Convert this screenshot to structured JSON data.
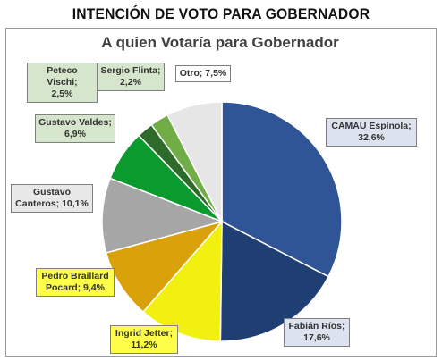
{
  "headline": "INTENCIÓN DE VOTO PARA GOBERNADOR",
  "chart_data": {
    "type": "pie",
    "title": "A quien Votaría para Gobernador",
    "slices": [
      {
        "name": "CAMAU Espínola",
        "value": 32.6,
        "label_line1": "CAMAU Espínola;",
        "label_line2": "32,6%",
        "color": "#2f5597",
        "label_bg": "#dce3ef"
      },
      {
        "name": "Fabián Ríos",
        "value": 17.6,
        "label_line1": "Fabián Ríos;",
        "label_line2": "17,6%",
        "color": "#1f3f73",
        "label_bg": "#dce3ef"
      },
      {
        "name": "Ingrid Jetter",
        "value": 11.2,
        "label_line1": "Ingrid Jetter;",
        "label_line2": "11,2%",
        "color": "#f2f00f",
        "label_bg": "#fefe4a"
      },
      {
        "name": "Pedro Braillard Pocard",
        "value": 9.4,
        "label_line1": "Pedro Braillard",
        "label_line2": "Pocard; 9,4%",
        "color": "#d9a20b",
        "label_bg": "#fefe4a"
      },
      {
        "name": "Gustavo Canteros",
        "value": 10.1,
        "label_line1": "Gustavo",
        "label_line2": "Canteros; 10,1%",
        "color": "#a6a6a6",
        "label_bg": "#e8e8e8"
      },
      {
        "name": "Gustavo Valdes",
        "value": 6.9,
        "label_line1": "Gustavo Valdes;",
        "label_line2": "6,9%",
        "color": "#0a9a2e",
        "label_bg": "#d6e6cc"
      },
      {
        "name": "Sergio Flinta",
        "value": 2.2,
        "label_line1": "Sergio Flinta;",
        "label_line2": "2,2%",
        "color": "#2e6b2a",
        "label_bg": "#d6e6cc"
      },
      {
        "name": "Peteco Vischi",
        "value": 2.5,
        "label_line1": "Peteco Vischi;",
        "label_line2": "2,5%",
        "color": "#70ad47",
        "label_bg": "#d6e6cc"
      },
      {
        "name": "Otro",
        "value": 7.5,
        "label_line1": "Otro; 7,5%",
        "label_line2": "",
        "color": "#e6e6e6",
        "label_bg": "#ffffff"
      }
    ],
    "start_angle": "12 o'clock",
    "direction": "clockwise",
    "legend": "none"
  }
}
